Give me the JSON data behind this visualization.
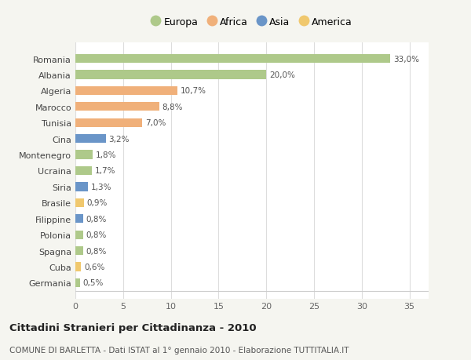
{
  "categories": [
    "Germania",
    "Cuba",
    "Spagna",
    "Polonia",
    "Filippine",
    "Brasile",
    "Siria",
    "Ucraina",
    "Montenegro",
    "Cina",
    "Tunisia",
    "Marocco",
    "Algeria",
    "Albania",
    "Romania"
  ],
  "values": [
    0.5,
    0.6,
    0.8,
    0.8,
    0.8,
    0.9,
    1.3,
    1.7,
    1.8,
    3.2,
    7.0,
    8.8,
    10.7,
    20.0,
    33.0
  ],
  "labels": [
    "0,5%",
    "0,6%",
    "0,8%",
    "0,8%",
    "0,8%",
    "0,9%",
    "1,3%",
    "1,7%",
    "1,8%",
    "3,2%",
    "7,0%",
    "8,8%",
    "10,7%",
    "20,0%",
    "33,0%"
  ],
  "colors": [
    "#aec98a",
    "#f0c86e",
    "#aec98a",
    "#aec98a",
    "#6a95c8",
    "#f0c86e",
    "#6a95c8",
    "#aec98a",
    "#aec98a",
    "#6a95c8",
    "#f0b07a",
    "#f0b07a",
    "#f0b07a",
    "#aec98a",
    "#aec98a"
  ],
  "continent_colors": {
    "Europa": "#aec98a",
    "Africa": "#f0b07a",
    "Asia": "#6a95c8",
    "America": "#f0c86e"
  },
  "legend_labels": [
    "Europa",
    "Africa",
    "Asia",
    "America"
  ],
  "xlim": [
    0,
    37
  ],
  "xticks": [
    0,
    5,
    10,
    15,
    20,
    25,
    30,
    35
  ],
  "title": "Cittadini Stranieri per Cittadinanza - 2010",
  "subtitle": "COMUNE DI BARLETTA - Dati ISTAT al 1° gennaio 2010 - Elaborazione TUTTITALIA.IT",
  "bg_color": "#f5f5f0",
  "plot_bg_color": "#ffffff",
  "grid_color": "#dddddd",
  "bar_height": 0.55
}
